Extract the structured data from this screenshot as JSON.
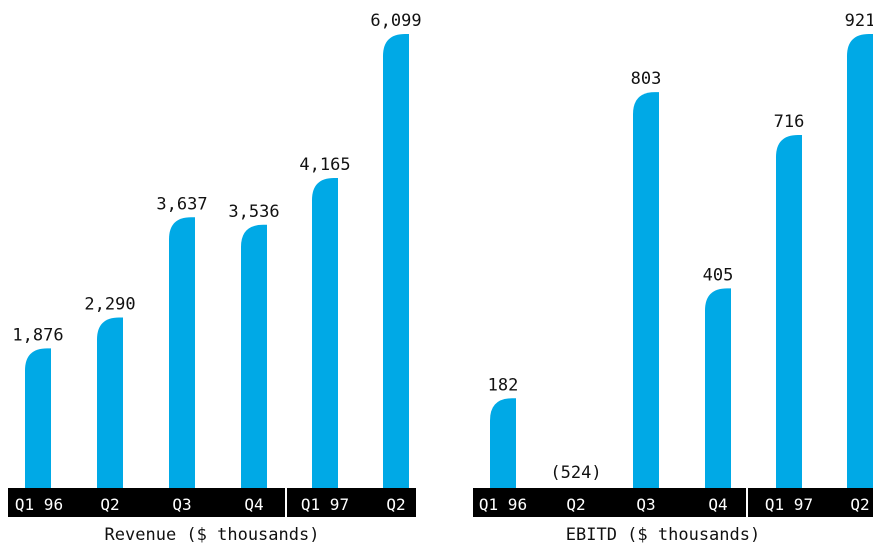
{
  "colors": {
    "bar": "#00a9e6",
    "axis_band": "#000000",
    "tick_text": "#ffffff",
    "label_text": "#111111"
  },
  "chart_data": [
    {
      "type": "bar",
      "title": "Revenue ($ thousands)",
      "categories": [
        "Q1 96",
        "Q2",
        "Q3",
        "Q4",
        "Q1 97",
        "Q2"
      ],
      "values": [
        1876,
        2290,
        3637,
        3536,
        4165,
        6099
      ],
      "value_labels": [
        "1,876",
        "2,290",
        "3,637",
        "3,536",
        "4,165",
        "6,099"
      ],
      "ylim": [
        0,
        6099
      ]
    },
    {
      "type": "bar",
      "title": "EBITD ($ thousands)",
      "categories": [
        "Q1 96",
        "Q2",
        "Q3",
        "Q4",
        "Q1 97",
        "Q2"
      ],
      "values": [
        182,
        -524,
        803,
        405,
        716,
        921
      ],
      "value_labels": [
        "182",
        "(524)",
        "803",
        "405",
        "716",
        "921"
      ],
      "ylim": [
        0,
        921
      ]
    }
  ]
}
